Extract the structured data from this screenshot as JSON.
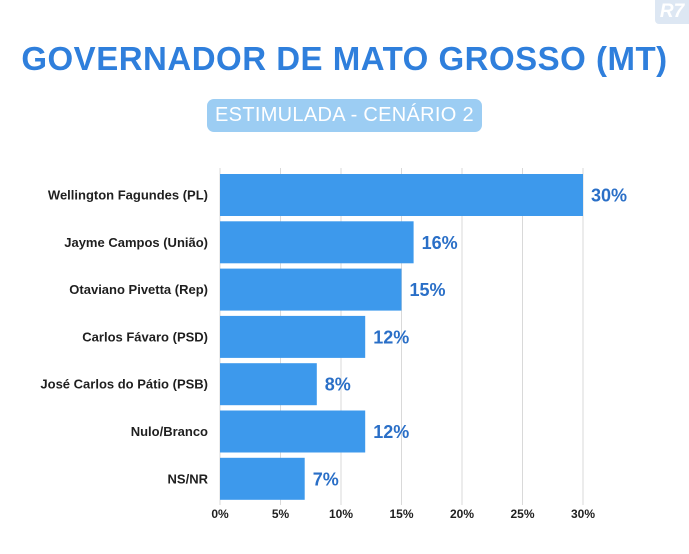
{
  "brand": {
    "logo_text": "R7"
  },
  "chart_data": {
    "type": "bar",
    "orientation": "horizontal",
    "title": "GOVERNADOR DE MATO GROSSO (MT)",
    "subtitle": "ESTIMULADA - CENÁRIO 2",
    "categories": [
      "Wellington Fagundes (PL)",
      "Jayme Campos (União)",
      "Otaviano Pivetta (Rep)",
      "Carlos Fávaro (PSD)",
      "José Carlos do Pátio (PSB)",
      "Nulo/Branco",
      "NS/NR"
    ],
    "values": [
      30,
      16,
      15,
      12,
      8,
      12,
      7
    ],
    "value_labels": [
      "30%",
      "16%",
      "15%",
      "12%",
      "8%",
      "12%",
      "7%"
    ],
    "xlim": [
      0,
      30
    ],
    "xticks": [
      0,
      5,
      10,
      15,
      20,
      25,
      30
    ],
    "xtick_labels": [
      "0%",
      "5%",
      "10%",
      "15%",
      "20%",
      "25%",
      "30%"
    ],
    "grid": "vertical",
    "colors": {
      "bar": "#3d99ec",
      "value_text": "#2a6fc7",
      "grid": "#d9d9d9",
      "title": "#2f7fdc"
    }
  }
}
